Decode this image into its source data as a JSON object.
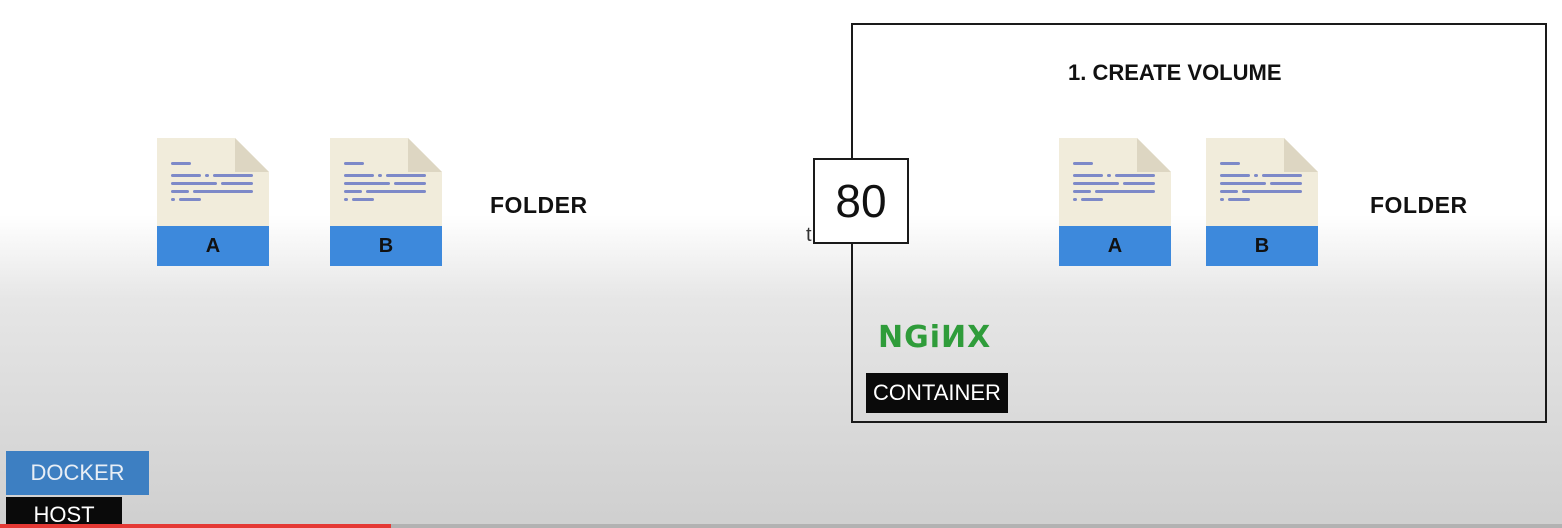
{
  "host": {
    "files": [
      {
        "label": "A"
      },
      {
        "label": "B"
      }
    ],
    "folder_label": "FOLDER",
    "docker_tag": "DOCKER",
    "host_tag": "HOST"
  },
  "container": {
    "step_title": "1. CREATE VOLUME",
    "port": "80",
    "files": [
      {
        "label": "A"
      },
      {
        "label": "B"
      }
    ],
    "folder_label": "FOLDER",
    "logo_text": "NGiИX",
    "tag": "CONTAINER"
  },
  "stray_mark": "t",
  "progress": {
    "fraction": 0.25
  },
  "colors": {
    "doc_body": "#f1ecdb",
    "doc_fold": "#ddd6c2",
    "doc_lines": "#7d89c8",
    "doc_band": "#3d89dc",
    "nginx_green": "#2f9c3a",
    "docker_blue": "#3d7fc2",
    "progress_red": "#e53935"
  }
}
